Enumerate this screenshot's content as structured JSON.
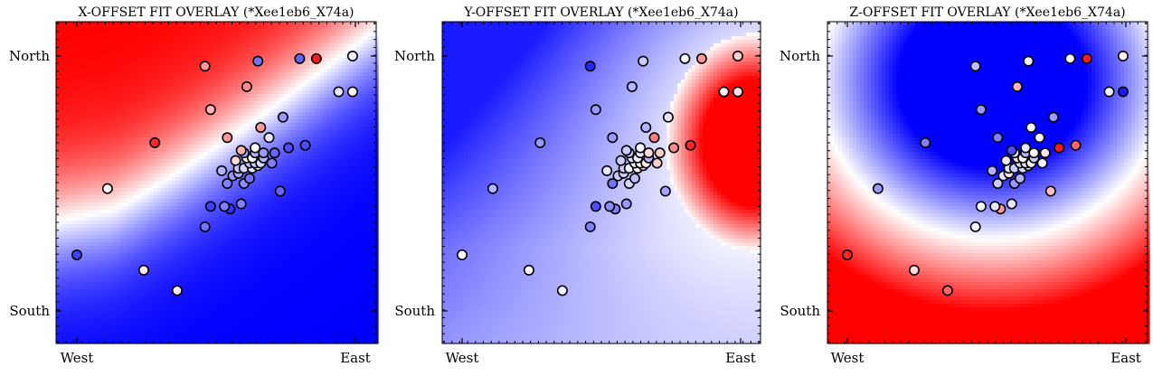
{
  "colors": {
    "low": "#0000ff",
    "mid": "#ffffff",
    "high": "#ff0000",
    "point_edge": "#000000"
  },
  "points": [
    {
      "x": 0.0,
      "y": 0.22
    },
    {
      "x": 0.11,
      "y": 0.48
    },
    {
      "x": 0.24,
      "y": 0.16
    },
    {
      "x": 0.36,
      "y": 0.08
    },
    {
      "x": 0.46,
      "y": 0.33
    },
    {
      "x": 0.55,
      "y": 0.4
    },
    {
      "x": 0.48,
      "y": 0.41
    },
    {
      "x": 0.53,
      "y": 0.41
    },
    {
      "x": 0.59,
      "y": 0.42
    },
    {
      "x": 0.73,
      "y": 0.47
    },
    {
      "x": 0.6,
      "y": 0.5
    },
    {
      "x": 0.62,
      "y": 0.52
    },
    {
      "x": 0.54,
      "y": 0.5
    },
    {
      "x": 0.56,
      "y": 0.53
    },
    {
      "x": 0.58,
      "y": 0.54
    },
    {
      "x": 0.52,
      "y": 0.55
    },
    {
      "x": 0.58,
      "y": 0.56
    },
    {
      "x": 0.6,
      "y": 0.56
    },
    {
      "x": 0.63,
      "y": 0.56
    },
    {
      "x": 0.65,
      "y": 0.57
    },
    {
      "x": 0.62,
      "y": 0.58
    },
    {
      "x": 0.64,
      "y": 0.58
    },
    {
      "x": 0.66,
      "y": 0.58
    },
    {
      "x": 0.7,
      "y": 0.58
    },
    {
      "x": 0.57,
      "y": 0.59
    },
    {
      "x": 0.61,
      "y": 0.6
    },
    {
      "x": 0.63,
      "y": 0.6
    },
    {
      "x": 0.67,
      "y": 0.6
    },
    {
      "x": 0.6,
      "y": 0.62
    },
    {
      "x": 0.64,
      "y": 0.62
    },
    {
      "x": 0.67,
      "y": 0.62
    },
    {
      "x": 0.71,
      "y": 0.62
    },
    {
      "x": 0.59,
      "y": 0.63
    },
    {
      "x": 0.64,
      "y": 0.64
    },
    {
      "x": 0.76,
      "y": 0.64
    },
    {
      "x": 0.54,
      "y": 0.68
    },
    {
      "x": 0.69,
      "y": 0.68
    },
    {
      "x": 0.28,
      "y": 0.66
    },
    {
      "x": 0.82,
      "y": 0.65
    },
    {
      "x": 0.66,
      "y": 0.72
    },
    {
      "x": 0.74,
      "y": 0.76
    },
    {
      "x": 0.48,
      "y": 0.79
    },
    {
      "x": 0.61,
      "y": 0.88
    },
    {
      "x": 0.46,
      "y": 0.96
    },
    {
      "x": 0.94,
      "y": 0.86
    },
    {
      "x": 0.65,
      "y": 0.98
    },
    {
      "x": 0.8,
      "y": 0.99
    },
    {
      "x": 0.86,
      "y": 0.99
    },
    {
      "x": 0.99,
      "y": 0.86
    },
    {
      "x": 0.99,
      "y": 1.0
    }
  ],
  "charts": [
    {
      "title": "X-OFFSET FIT OVERLAY (*Xee1eb6_X74a)",
      "yticks": [
        "North",
        "South"
      ],
      "xticks": [
        "West",
        "East"
      ],
      "field": {
        "type": "diag",
        "k": 2.2,
        "cx": 0.12,
        "cy": 0.48,
        "curv": 0.55
      },
      "point_values": [
        -0.75,
        0.0,
        0.1,
        0.1,
        -0.55,
        -0.8,
        -0.75,
        -0.5,
        -0.5,
        -0.6,
        -0.45,
        -0.55,
        -0.5,
        -0.4,
        -0.35,
        -0.3,
        -0.2,
        -0.15,
        -0.1,
        -0.05,
        -0.25,
        -0.2,
        -0.15,
        -0.5,
        0.15,
        0.05,
        0.0,
        -0.3,
        -0.35,
        -0.3,
        -0.4,
        -0.6,
        0.3,
        0.0,
        -0.7,
        0.4,
        -0.1,
        0.85,
        -0.7,
        0.4,
        -0.4,
        0.3,
        0.45,
        0.4,
        -0.1,
        -0.55,
        -0.6,
        0.9,
        0.05,
        -0.05
      ]
    },
    {
      "title": "Y-OFFSET FIT OVERLAY (*Xee1eb6_X74a)",
      "yticks": [
        "North",
        "South"
      ],
      "xticks": [
        "West",
        "East"
      ],
      "field": {
        "type": "east",
        "cx": 1.05,
        "cy": 0.66,
        "r": 0.32
      },
      "point_values": [
        0.0,
        -0.3,
        0.0,
        -0.05,
        -0.5,
        -0.5,
        -0.7,
        -0.45,
        -0.4,
        -0.35,
        -0.15,
        -0.25,
        -0.55,
        -0.2,
        -0.2,
        -0.1,
        -0.2,
        -0.05,
        0.05,
        -0.1,
        -0.05,
        0.0,
        0.1,
        0.2,
        -0.2,
        -0.1,
        -0.05,
        -0.3,
        -0.25,
        -0.1,
        0.15,
        0.2,
        -0.2,
        -0.05,
        0.45,
        -0.4,
        0.5,
        -0.4,
        0.85,
        -0.3,
        -0.1,
        -0.4,
        -0.3,
        -0.85,
        -0.05,
        -0.2,
        0.0,
        0.4,
        0.1,
        0.2
      ]
    },
    {
      "title": "Z-OFFSET FIT OVERLAY (*Xee1eb6_X74a)",
      "yticks": [
        "North",
        "South"
      ],
      "xticks": [
        "West",
        "East"
      ],
      "field": {
        "type": "bowl",
        "cx": 0.52,
        "cy": 0.9,
        "rx": 0.62,
        "ry": 0.62
      },
      "point_values": [
        0.85,
        -0.4,
        0.15,
        0.6,
        -0.05,
        0.4,
        0.0,
        -0.1,
        -0.1,
        0.25,
        -0.4,
        -0.3,
        -0.2,
        -0.1,
        0.1,
        -0.3,
        -0.1,
        -0.2,
        -0.15,
        -0.1,
        -0.15,
        -0.1,
        0.0,
        -0.05,
        0.1,
        0.15,
        0.0,
        -0.2,
        -0.1,
        -0.3,
        0.0,
        0.1,
        -0.7,
        -0.1,
        0.9,
        -0.5,
        0.0,
        -0.5,
        0.6,
        0.0,
        -0.4,
        -0.4,
        0.3,
        -0.25,
        -0.05,
        -0.05,
        0.0,
        0.9,
        -0.9,
        0.05
      ]
    }
  ]
}
